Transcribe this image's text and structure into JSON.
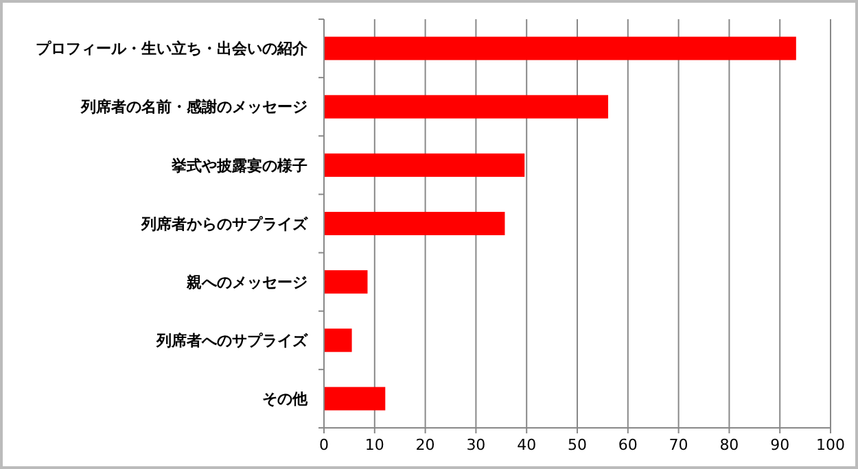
{
  "chart_data": {
    "type": "bar",
    "orientation": "horizontal",
    "categories": [
      "プロフィール・生い立ち・出会いの紹介",
      "列席者の名前・感謝のメッセージ",
      "挙式や披露宴の様子",
      "列席者からのサプライズ",
      "親へのメッセージ",
      "列席者へのサプライズ",
      "その他"
    ],
    "values": [
      93.2,
      56.1,
      39.6,
      35.7,
      8.6,
      5.5,
      12.1
    ],
    "color": "#ff0000",
    "xlim": [
      0,
      100
    ],
    "xticks": [
      0,
      10,
      20,
      30,
      40,
      50,
      60,
      70,
      80,
      90,
      100
    ],
    "grid": "x"
  }
}
